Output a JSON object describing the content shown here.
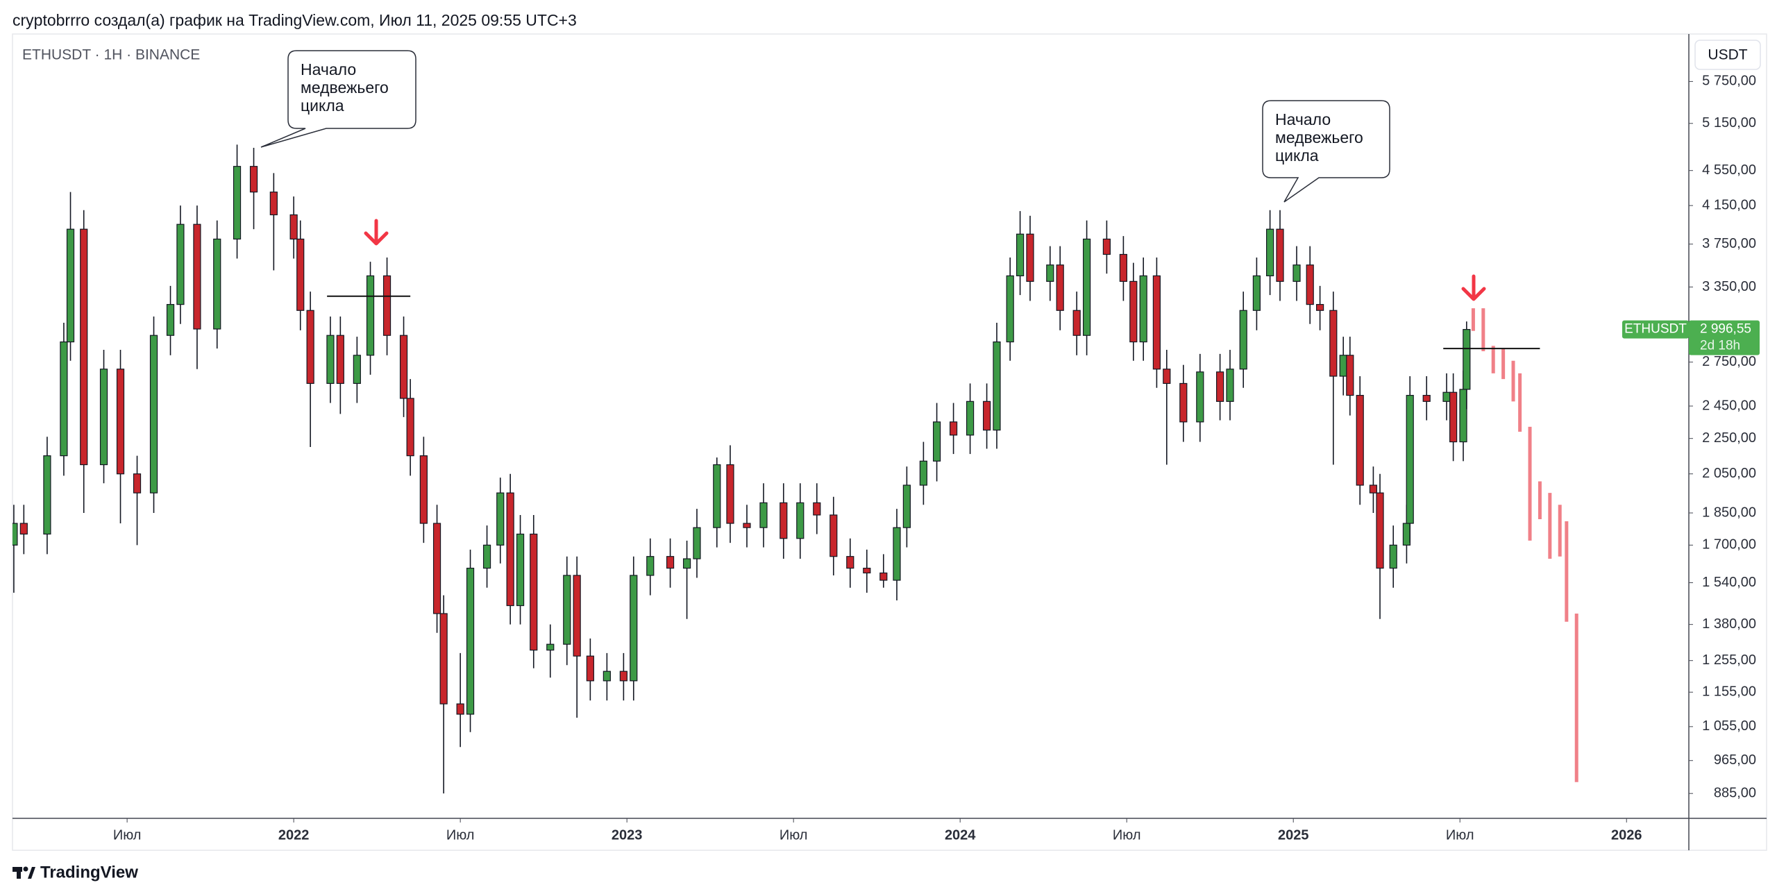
{
  "chart_data": {
    "type": "candlestick",
    "header": "cryptobrrro создал(а) график на TradingView.com, Июл 11, 2025 09:55 UTC+3",
    "title": "ETHUSDT · 1H · BINANCE",
    "y_label": "USDT",
    "brand": "TradingView",
    "log_scale": true,
    "grid": false,
    "up_color": "#3d9a46",
    "down_color": "#c8262c",
    "xlim": [
      2021.156,
      2026.187
    ],
    "ylim": [
      829,
      6514
    ],
    "xticks": [
      {
        "value": 2021.5,
        "label": "Июл"
      },
      2022,
      {
        "value": 2022.5,
        "label": "Июл"
      },
      2023,
      {
        "value": 2023.5,
        "label": "Июл"
      },
      2024,
      {
        "value": 2024.5,
        "label": "Июл"
      },
      2025,
      {
        "value": 2025.5,
        "label": "Июл"
      },
      2026
    ],
    "yticks": [
      {
        "value": 5750,
        "label": "5 750,00"
      },
      {
        "value": 5150,
        "label": "5 150,00"
      },
      {
        "value": 4550,
        "label": "4 550,00"
      },
      {
        "value": 4150,
        "label": "4 150,00"
      },
      {
        "value": 3750,
        "label": "3 750,00"
      },
      {
        "value": 3350,
        "label": "3 350,00"
      },
      {
        "value": 2750,
        "label": "2 750,00"
      },
      {
        "value": 2450,
        "label": "2 450,00"
      },
      {
        "value": 2250,
        "label": "2 250,00"
      },
      {
        "value": 2050,
        "label": "2 050,00"
      },
      {
        "value": 1850,
        "label": "1 850,00"
      },
      {
        "value": 1700,
        "label": "1 700,00"
      },
      {
        "value": 1540,
        "label": "1 540,00"
      },
      {
        "value": 1380,
        "label": "1 380,00"
      },
      {
        "value": 1255,
        "label": "1 255,00"
      },
      {
        "value": 1155,
        "label": "1 155,00"
      },
      {
        "value": 1055,
        "label": "1 055,00"
      },
      {
        "value": 965,
        "label": "965,00"
      },
      {
        "value": 885,
        "label": "885,00"
      }
    ],
    "x": [
      2021.16,
      2021.19,
      2021.26,
      2021.31,
      2021.33,
      2021.37,
      2021.43,
      2021.48,
      2021.53,
      2021.58,
      2021.63,
      2021.66,
      2021.71,
      2021.77,
      2021.83,
      2021.88,
      2021.94,
      2022.0,
      2022.02,
      2022.05,
      2022.11,
      2022.14,
      2022.19,
      2022.23,
      2022.28,
      2022.33,
      2022.35,
      2022.39,
      2022.43,
      2022.45,
      2022.5,
      2022.53,
      2022.58,
      2022.62,
      2022.65,
      2022.68,
      2022.72,
      2022.77,
      2022.82,
      2022.85,
      2022.89,
      2022.94,
      2022.99,
      2023.02,
      2023.07,
      2023.13,
      2023.18,
      2023.21,
      2023.27,
      2023.31,
      2023.36,
      2023.41,
      2023.47,
      2023.52,
      2023.57,
      2023.62,
      2023.67,
      2023.72,
      2023.77,
      2023.81,
      2023.84,
      2023.89,
      2023.93,
      2023.98,
      2024.03,
      2024.08,
      2024.11,
      2024.15,
      2024.18,
      2024.21,
      2024.27,
      2024.3,
      2024.35,
      2024.38,
      2024.44,
      2024.49,
      2024.52,
      2024.55,
      2024.59,
      2024.62,
      2024.67,
      2024.72,
      2024.78,
      2024.81,
      2024.85,
      2024.89,
      2024.93,
      2024.96,
      2025.01,
      2025.05,
      2025.08,
      2025.12,
      2025.15,
      2025.17,
      2025.2,
      2025.24,
      2025.26,
      2025.3,
      2025.34,
      2025.35,
      2025.4,
      2025.46,
      2025.48,
      2025.51,
      2025.52
    ],
    "open": [
      1700,
      1800,
      1750,
      2150,
      2900,
      3900,
      2100,
      2700,
      2050,
      1950,
      2950,
      3200,
      3950,
      3000,
      3800,
      4600,
      4300,
      4050,
      3800,
      3150,
      2600,
      2950,
      2600,
      2800,
      3450,
      2950,
      2500,
      2150,
      1800,
      1420,
      1120,
      1090,
      1600,
      1700,
      1950,
      1450,
      1750,
      1290,
      1310,
      1570,
      1270,
      1190,
      1220,
      1190,
      1570,
      1650,
      1600,
      1640,
      1780,
      2100,
      1800,
      1780,
      1900,
      1730,
      1900,
      1840,
      1650,
      1600,
      1580,
      1550,
      1780,
      1990,
      2120,
      2350,
      2270,
      2480,
      2300,
      2900,
      3450,
      3850,
      3400,
      3550,
      3150,
      2950,
      3800,
      3650,
      3400,
      2900,
      3450,
      2700,
      2600,
      2350,
      2680,
      2480,
      2700,
      3150,
      3450,
      3900,
      3400,
      3550,
      3200,
      3150,
      2650,
      2800,
      2520,
      1990,
      1950,
      1600,
      1700,
      1800,
      2520,
      2480,
      2540,
      2230,
      2560
    ],
    "high": [
      1890,
      1890,
      2260,
      3050,
      4300,
      4100,
      2840,
      2840,
      2150,
      3100,
      3360,
      4150,
      4150,
      3990,
      4870,
      4830,
      4520,
      4250,
      3990,
      3310,
      3100,
      3100,
      2940,
      3580,
      3620,
      3100,
      2630,
      2260,
      1890,
      1490,
      1280,
      1680,
      1790,
      2030,
      2050,
      1840,
      1840,
      1380,
      1650,
      1650,
      1330,
      1280,
      1280,
      1650,
      1730,
      1730,
      1720,
      1870,
      2140,
      2210,
      1890,
      2000,
      2000,
      2000,
      2000,
      1930,
      1730,
      1680,
      1660,
      1870,
      2090,
      2230,
      2470,
      2470,
      2600,
      2600,
      3050,
      3620,
      4090,
      4040,
      3730,
      3730,
      3310,
      3990,
      3990,
      3830,
      3570,
      3620,
      3620,
      2840,
      2730,
      2810,
      2810,
      2840,
      3310,
      3620,
      4100,
      4100,
      3730,
      3730,
      3360,
      3310,
      2940,
      2940,
      2650,
      2090,
      2050,
      1790,
      1890,
      2650,
      2650,
      2670,
      2670,
      2690,
      3060
    ],
    "low": [
      1500,
      1660,
      1660,
      2040,
      2760,
      1850,
      2000,
      1800,
      1700,
      1850,
      2800,
      3040,
      2700,
      2850,
      3610,
      3900,
      3500,
      3610,
      2990,
      2200,
      2470,
      2400,
      2470,
      2660,
      2800,
      2380,
      2040,
      1710,
      1350,
      885,
      1000,
      1040,
      1520,
      1620,
      1380,
      1380,
      1230,
      1200,
      1240,
      1080,
      1130,
      1130,
      1130,
      1130,
      1490,
      1520,
      1400,
      1560,
      1690,
      1710,
      1690,
      1690,
      1640,
      1640,
      1750,
      1570,
      1520,
      1500,
      1520,
      1470,
      1690,
      1890,
      2010,
      2160,
      2160,
      2190,
      2190,
      2760,
      3280,
      3230,
      3230,
      2990,
      2800,
      2800,
      3470,
      3230,
      2760,
      2760,
      2570,
      2100,
      2230,
      2230,
      2360,
      2360,
      2570,
      2990,
      3280,
      3230,
      3230,
      3040,
      2990,
      2100,
      2520,
      2390,
      1890,
      1850,
      1400,
      1520,
      1620,
      1710,
      2360,
      2360,
      2120,
      2120,
      2430
    ],
    "close": [
      1800,
      1750,
      2150,
      2900,
      3900,
      2100,
      2700,
      2050,
      1950,
      2950,
      3200,
      3950,
      3000,
      3800,
      4600,
      4300,
      4050,
      3800,
      3150,
      2600,
      2950,
      2600,
      2800,
      3450,
      2950,
      2500,
      2150,
      1800,
      1420,
      1120,
      1090,
      1600,
      1700,
      1950,
      1450,
      1750,
      1290,
      1310,
      1570,
      1270,
      1190,
      1220,
      1190,
      1570,
      1650,
      1600,
      1640,
      1780,
      2100,
      1800,
      1780,
      1900,
      1730,
      1900,
      1840,
      1650,
      1600,
      1580,
      1550,
      1780,
      1990,
      2120,
      2350,
      2270,
      2480,
      2300,
      2900,
      3450,
      3850,
      3400,
      3550,
      3150,
      2950,
      3800,
      3650,
      3400,
      2900,
      3450,
      2700,
      2600,
      2350,
      2680,
      2480,
      2700,
      3150,
      3450,
      3900,
      3400,
      3550,
      3200,
      3150,
      2650,
      2800,
      2520,
      1990,
      1950,
      1600,
      1700,
      1800,
      2520,
      2480,
      2540,
      2230,
      2560,
      2996.55
    ],
    "last_price": {
      "symbol": "ETHUSDT",
      "value": 2996.55,
      "label": "2 996,55",
      "countdown": "2d 18h",
      "color": "#4caf50"
    },
    "projection": {
      "color": "#f08088",
      "x": [
        2025.54,
        2025.57,
        2025.6,
        2025.63,
        2025.66,
        2025.68,
        2025.71,
        2025.74,
        2025.77,
        2025.8,
        2025.82,
        2025.85
      ],
      "high": [
        3168,
        3168,
        2870,
        2850,
        2760,
        2670,
        2320,
        2010,
        1950,
        1890,
        1810,
        1420
      ],
      "low": [
        2985,
        2830,
        2670,
        2630,
        2480,
        2290,
        1720,
        1820,
        1640,
        1650,
        1390,
        912
      ]
    },
    "levels": [
      {
        "x": [
          2022.1,
          2022.35
        ],
        "value": 3270,
        "color": "#111111"
      },
      {
        "x": [
          2025.45,
          2025.74
        ],
        "value": 2850,
        "color": "#111111"
      }
    ],
    "annotations": [
      {
        "lines": [
          "Начало",
          "медвежьего",
          "цикла"
        ]
      },
      {
        "lines": [
          "Начало",
          "медвежьего",
          "цикла"
        ]
      }
    ]
  }
}
